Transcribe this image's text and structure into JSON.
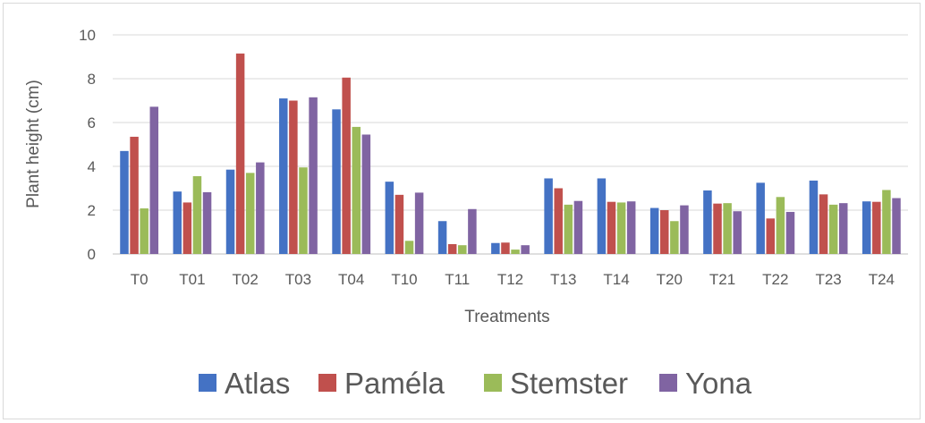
{
  "chart_data": {
    "type": "bar",
    "title": "",
    "xlabel": "Treatments",
    "ylabel": "Plant height (cm)",
    "ylim": [
      0,
      10
    ],
    "yticks": [
      0,
      2,
      4,
      6,
      8,
      10
    ],
    "grid": true,
    "legend_position": "bottom",
    "categories": [
      "T0",
      "T01",
      "T02",
      "T03",
      "T04",
      "T10",
      "T11",
      "T12",
      "T13",
      "T14",
      "T20",
      "T21",
      "T22",
      "T23",
      "T24"
    ],
    "series": [
      {
        "name": "Atlas",
        "color": "#4472C4",
        "values": [
          4.7,
          2.85,
          3.85,
          7.1,
          6.6,
          3.3,
          1.5,
          0.5,
          3.45,
          3.45,
          2.1,
          2.9,
          3.25,
          3.35,
          2.4
        ]
      },
      {
        "name": "Paméla",
        "color": "#C0504D",
        "values": [
          5.35,
          2.35,
          9.15,
          7.0,
          8.05,
          2.7,
          0.45,
          0.52,
          3.0,
          2.38,
          2.0,
          2.3,
          1.62,
          2.72,
          2.38
        ]
      },
      {
        "name": "Stemster",
        "color": "#9BBB59",
        "values": [
          2.08,
          3.55,
          3.7,
          3.95,
          5.8,
          0.6,
          0.4,
          0.2,
          2.25,
          2.35,
          1.5,
          2.32,
          2.6,
          2.25,
          2.92
        ]
      },
      {
        "name": "Yona",
        "color": "#8064A2",
        "values": [
          6.72,
          2.82,
          4.18,
          7.15,
          5.45,
          2.8,
          2.05,
          0.4,
          2.42,
          2.4,
          2.22,
          1.95,
          1.92,
          2.32,
          2.55
        ]
      }
    ]
  }
}
